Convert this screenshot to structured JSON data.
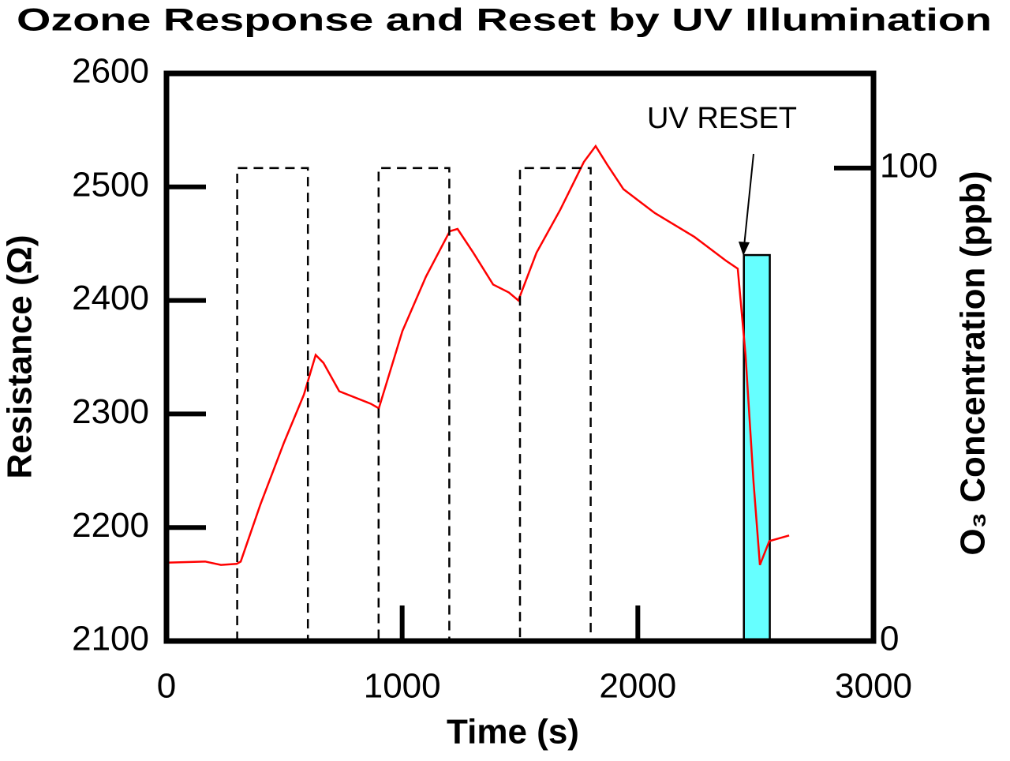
{
  "chart_data": {
    "type": "line",
    "title": "Ozone Response and Reset by UV Illumination",
    "x_label": "Time (s)",
    "y_label": "Resistance (Ω)",
    "y2_label": "O₃ Concentration (ppb)",
    "xlim": [
      0,
      3000
    ],
    "xticks": [
      0,
      1000,
      2000,
      3000
    ],
    "ylim": [
      2100,
      2600
    ],
    "yticks": [
      2100,
      2200,
      2300,
      2400,
      2500,
      2600
    ],
    "y2lim": [
      0,
      120
    ],
    "y2ticks": [
      0,
      100
    ],
    "series": [
      {
        "name": "Resistance",
        "color": "#ff0000",
        "x": [
          0,
          164,
          231,
          298,
          315,
          398,
          499,
          583,
          633,
          666,
          733,
          867,
          901,
          1001,
          1101,
          1202,
          1235,
          1302,
          1386,
          1453,
          1493,
          1570,
          1671,
          1771,
          1821,
          1872,
          1939,
          2072,
          2240,
          2374,
          2424,
          2457,
          2491,
          2518,
          2558,
          2642
        ],
        "values": [
          2169,
          2170,
          2167,
          2168,
          2170,
          2220,
          2275,
          2317,
          2352,
          2345,
          2320,
          2309,
          2305,
          2373,
          2421,
          2461,
          2463,
          2442,
          2414,
          2407,
          2400,
          2442,
          2480,
          2522,
          2536,
          2519,
          2498,
          2477,
          2456,
          2435,
          2428,
          2352,
          2240,
          2167,
          2188,
          2193
        ]
      },
      {
        "name": "O₃ Concentration",
        "color": "#000000",
        "axis": "y2",
        "dashed": true,
        "x": [
          300,
          300,
          600,
          600,
          900,
          900,
          1200,
          1200,
          1500,
          1500,
          1800,
          1800
        ],
        "values": [
          0,
          100,
          100,
          0,
          0,
          100,
          100,
          0,
          0,
          100,
          100,
          0
        ]
      }
    ],
    "uv_bar": {
      "x": [
        2450,
        2560
      ],
      "value": 2440,
      "color": "#66ffff"
    },
    "annotation": "UV RESET"
  }
}
